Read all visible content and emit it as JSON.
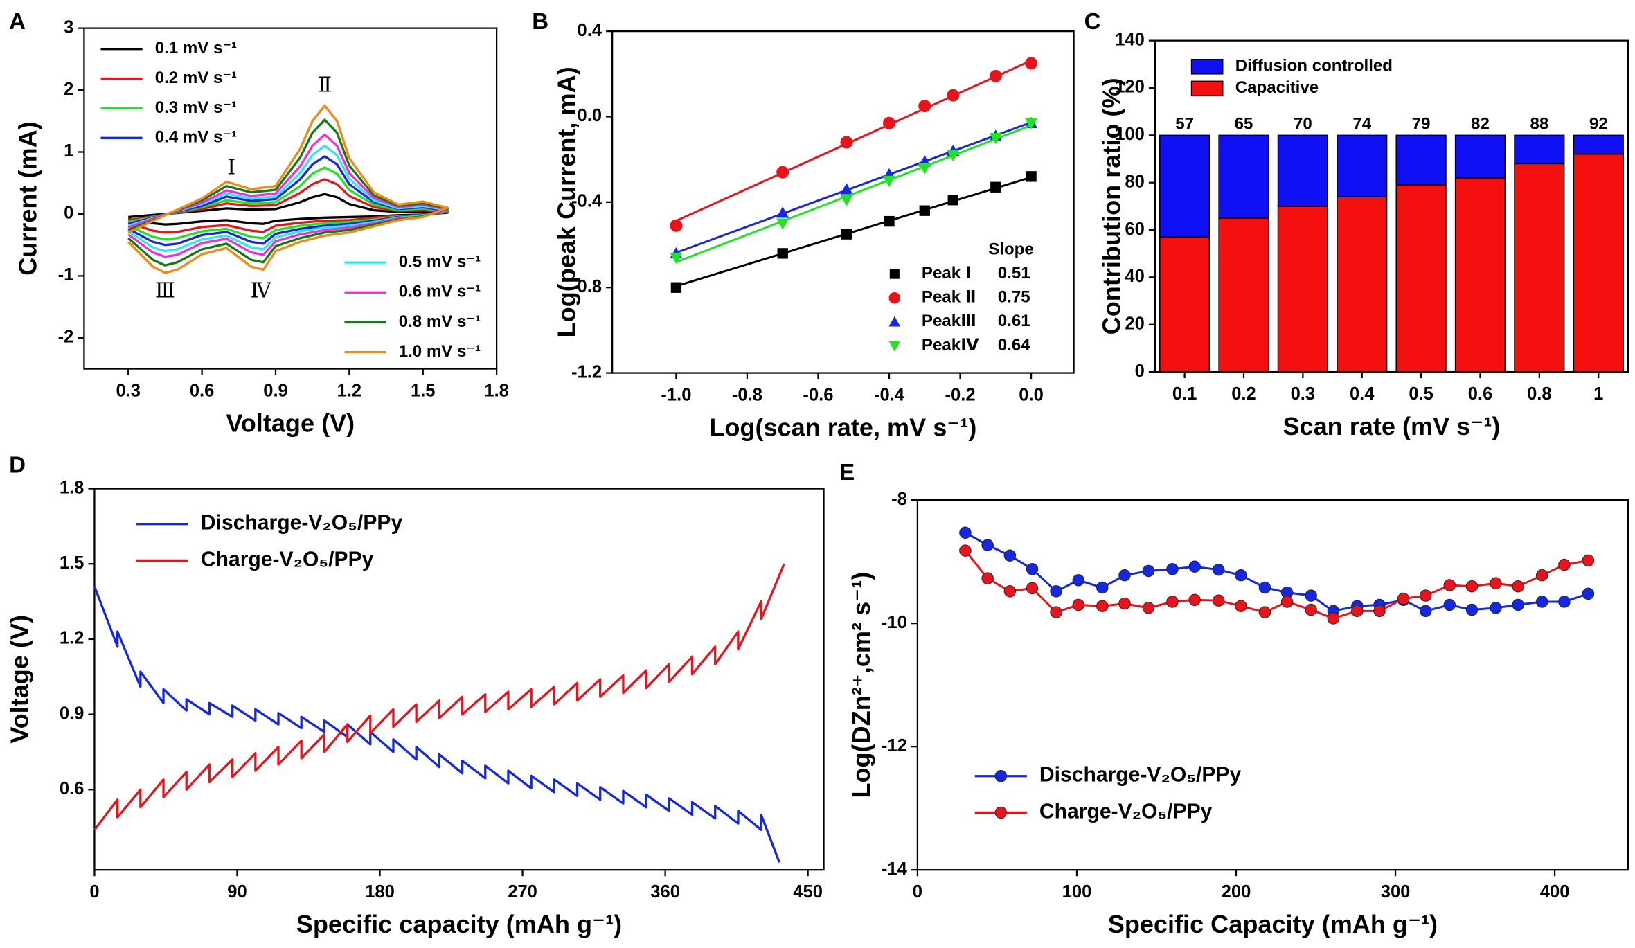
{
  "chart_data": [
    {
      "type": "line",
      "panel_label": "A",
      "xlabel": "Voltage (V)",
      "ylabel": "Current (mA)",
      "xlim": [
        0.12,
        1.8
      ],
      "xticks": [
        0.3,
        0.6,
        0.9,
        1.2,
        1.5,
        1.8
      ],
      "ylim": [
        -2.5,
        3
      ],
      "yticks": [
        -2,
        -1,
        0,
        1,
        2,
        3
      ],
      "x": [
        0.3,
        0.45,
        0.6,
        0.7,
        0.8,
        0.9,
        1.0,
        1.05,
        1.1,
        1.15,
        1.2,
        1.3,
        1.4,
        1.5,
        1.6,
        1.5,
        1.4,
        1.3,
        1.2,
        1.1,
        1.0,
        0.9,
        0.85,
        0.8,
        0.7,
        0.6,
        0.5,
        0.45,
        0.4,
        0.3
      ],
      "series": [
        {
          "name": "0.1 mV s⁻¹",
          "color": "#000000",
          "values": [
            -0.05,
            0,
            0.05,
            0.09,
            0.07,
            0.08,
            0.19,
            0.27,
            0.32,
            0.27,
            0.16,
            0.06,
            0.03,
            0.04,
            0.02,
            -0.01,
            -0.02,
            -0.04,
            -0.05,
            -0.06,
            -0.08,
            -0.11,
            -0.16,
            -0.15,
            -0.1,
            -0.12,
            -0.16,
            -0.17,
            -0.15,
            -0.08
          ]
        },
        {
          "name": "0.2 mV s⁻¹",
          "color": "#e8141c",
          "values": [
            -0.1,
            -0.01,
            0.08,
            0.17,
            0.13,
            0.14,
            0.34,
            0.48,
            0.56,
            0.48,
            0.29,
            0.11,
            0.05,
            0.06,
            0.03,
            -0.02,
            -0.03,
            -0.06,
            -0.1,
            -0.11,
            -0.14,
            -0.19,
            -0.29,
            -0.27,
            -0.18,
            -0.21,
            -0.29,
            -0.3,
            -0.27,
            -0.14
          ]
        },
        {
          "name": "0.3 mV s⁻¹",
          "color": "#1ee61e",
          "values": [
            -0.13,
            -0.01,
            0.11,
            0.22,
            0.17,
            0.19,
            0.45,
            0.65,
            0.75,
            0.65,
            0.39,
            0.15,
            0.06,
            0.09,
            0.04,
            -0.02,
            -0.04,
            -0.09,
            -0.13,
            -0.15,
            -0.19,
            -0.26,
            -0.39,
            -0.37,
            -0.24,
            -0.28,
            -0.39,
            -0.41,
            -0.37,
            -0.19
          ]
        },
        {
          "name": "0.4 mV s⁻¹",
          "color": "#1428e0",
          "values": [
            -0.16,
            -0.01,
            0.13,
            0.28,
            0.21,
            0.24,
            0.56,
            0.8,
            0.93,
            0.8,
            0.48,
            0.19,
            0.08,
            0.11,
            0.05,
            -0.03,
            -0.05,
            -0.11,
            -0.16,
            -0.19,
            -0.24,
            -0.32,
            -0.48,
            -0.45,
            -0.29,
            -0.34,
            -0.48,
            -0.5,
            -0.45,
            -0.24
          ]
        },
        {
          "name": "0.5 mV s⁻¹",
          "color": "#2ee8f0",
          "values": [
            -0.19,
            -0.01,
            0.16,
            0.33,
            0.25,
            0.28,
            0.66,
            0.95,
            1.1,
            0.95,
            0.57,
            0.22,
            0.09,
            0.13,
            0.06,
            -0.03,
            -0.06,
            -0.13,
            -0.19,
            -0.22,
            -0.28,
            -0.38,
            -0.57,
            -0.54,
            -0.35,
            -0.41,
            -0.57,
            -0.6,
            -0.54,
            -0.28
          ]
        },
        {
          "name": "0.6 mV s⁻¹",
          "color": "#f02ee0",
          "values": [
            -0.22,
            -0.01,
            0.18,
            0.38,
            0.29,
            0.33,
            0.77,
            1.1,
            1.28,
            1.1,
            0.66,
            0.26,
            0.11,
            0.15,
            0.07,
            -0.04,
            -0.07,
            -0.15,
            -0.22,
            -0.26,
            -0.33,
            -0.44,
            -0.66,
            -0.62,
            -0.4,
            -0.47,
            -0.66,
            -0.69,
            -0.62,
            -0.33
          ]
        },
        {
          "name": "0.8 mV s⁻¹",
          "color": "#137a13",
          "values": [
            -0.26,
            -0.02,
            0.22,
            0.45,
            0.35,
            0.39,
            0.91,
            1.31,
            1.52,
            1.31,
            0.78,
            0.3,
            0.13,
            0.17,
            0.09,
            -0.04,
            -0.09,
            -0.17,
            -0.26,
            -0.3,
            -0.39,
            -0.52,
            -0.78,
            -0.74,
            -0.48,
            -0.57,
            -0.78,
            -0.83,
            -0.74,
            -0.39
          ]
        },
        {
          "name": "1.0 mV s⁻¹",
          "color": "#f08a14",
          "values": [
            -0.3,
            -0.02,
            0.25,
            0.52,
            0.4,
            0.45,
            1.05,
            1.5,
            1.75,
            1.5,
            0.9,
            0.35,
            0.15,
            0.2,
            0.1,
            -0.05,
            -0.1,
            -0.2,
            -0.3,
            -0.35,
            -0.45,
            -0.6,
            -0.9,
            -0.85,
            -0.55,
            -0.65,
            -0.9,
            -0.95,
            -0.85,
            -0.45
          ]
        }
      ],
      "annotations": [
        {
          "text": "Ⅰ",
          "x": 0.72,
          "y": 0.72,
          "color": "#000000"
        },
        {
          "text": "Ⅱ",
          "x": 1.1,
          "y": 2.05,
          "color": "#e8141c"
        },
        {
          "text": "Ⅲ",
          "x": 0.45,
          "y": -1.27,
          "color": "#1428e0"
        },
        {
          "text": "Ⅳ",
          "x": 0.84,
          "y": -1.27,
          "color": "#f02ee0"
        }
      ]
    },
    {
      "type": "scatter",
      "panel_label": "B",
      "xlabel": "Log(scan rate, mV s⁻¹)",
      "ylabel": "Log(peak Current, mA)",
      "xlim": [
        -1.18,
        0.12
      ],
      "xticks": [
        {
          "value": -1,
          "label": "-1.0"
        },
        -0.8,
        -0.6,
        -0.4,
        -0.2,
        {
          "value": 0,
          "label": "0.0"
        }
      ],
      "ylim": [
        -1.2,
        0.4
      ],
      "yticks": [
        -1.2,
        -0.8,
        -0.4,
        {
          "value": 0,
          "label": "0.0"
        },
        0.4
      ],
      "legend_title": "Slope",
      "x": [
        -1,
        -0.7,
        -0.52,
        -0.4,
        -0.3,
        -0.22,
        -0.1,
        0
      ],
      "series": [
        {
          "name": "Peak Ⅰ",
          "color": "#000000",
          "marker": "square",
          "slope": 0.51,
          "values": [
            -0.8,
            -0.64,
            -0.55,
            -0.49,
            -0.44,
            -0.39,
            -0.33,
            -0.28
          ]
        },
        {
          "name": "Peak Ⅱ",
          "color": "#e8141c",
          "marker": "circle",
          "slope": 0.75,
          "values": [
            -0.51,
            -0.26,
            -0.12,
            -0.03,
            0.05,
            0.1,
            0.19,
            0.25
          ]
        },
        {
          "name": "PeakⅢ",
          "color": "#1428e0",
          "marker": "triangle-up",
          "slope": 0.61,
          "values": [
            -0.64,
            -0.45,
            -0.34,
            -0.27,
            -0.21,
            -0.16,
            -0.09,
            -0.03
          ]
        },
        {
          "name": "PeakⅣ",
          "color": "#1ee61e",
          "marker": "triangle-down",
          "slope": 0.64,
          "values": [
            -0.66,
            -0.5,
            -0.39,
            -0.3,
            -0.24,
            -0.18,
            -0.1,
            -0.03
          ]
        }
      ]
    },
    {
      "type": "bar",
      "panel_label": "C",
      "xlabel": "Scan rate (mV s⁻¹)",
      "ylabel": "Contribution ratio (%)",
      "stacked": true,
      "categories": [
        "0.1",
        "0.2",
        "0.3",
        "0.4",
        "0.5",
        "0.6",
        "0.8",
        "1"
      ],
      "ylim": [
        0,
        140
      ],
      "yticks": [
        0,
        20,
        40,
        60,
        80,
        100,
        120,
        140
      ],
      "series": [
        {
          "name": "Diffusion controlled",
          "color": "#1010f5",
          "values": [
            43,
            35,
            30,
            26,
            21,
            18,
            12,
            8
          ]
        },
        {
          "name": "Capacitive",
          "color": "#f51010",
          "show_labels": true,
          "values": [
            57,
            65,
            70,
            74,
            79,
            82,
            88,
            92
          ]
        }
      ]
    },
    {
      "type": "line",
      "panel_label": "D",
      "xlabel": "Specific capacity (mAh g⁻¹)",
      "ylabel": "Voltage (V)",
      "xlim": [
        0,
        460
      ],
      "xticks": [
        0,
        90,
        180,
        270,
        360,
        450
      ],
      "ylim": [
        0.28,
        1.8
      ],
      "yticks": [
        0.6,
        0.9,
        1.2,
        1.5,
        1.8
      ],
      "series": [
        {
          "name": "Discharge-V₂O₅/PPy",
          "color": "#1428e0",
          "x": [
            0,
            14.5,
            14.5,
            29,
            29,
            43.5,
            43.5,
            58,
            58,
            72.5,
            72.5,
            87,
            87,
            101.5,
            101.5,
            116,
            116,
            130.5,
            130.5,
            145,
            145,
            159.5,
            159.5,
            174,
            174,
            188.5,
            188.5,
            203,
            203,
            217.5,
            217.5,
            232,
            232,
            246.5,
            246.5,
            261,
            261,
            275.5,
            275.5,
            290,
            290,
            304.5,
            304.5,
            319,
            319,
            333.5,
            333.5,
            348,
            348,
            362.5,
            362.5,
            377,
            377,
            391.5,
            391.5,
            406,
            406,
            420.5,
            420.5,
            432
          ],
          "values": [
            1.41,
            1.17,
            1.23,
            1.01,
            1.07,
            0.945,
            1.0,
            0.915,
            0.96,
            0.9,
            0.945,
            0.89,
            0.935,
            0.875,
            0.92,
            0.86,
            0.905,
            0.845,
            0.89,
            0.83,
            0.875,
            0.81,
            0.86,
            0.78,
            0.83,
            0.75,
            0.8,
            0.72,
            0.77,
            0.69,
            0.74,
            0.665,
            0.715,
            0.645,
            0.695,
            0.625,
            0.675,
            0.605,
            0.655,
            0.59,
            0.64,
            0.575,
            0.625,
            0.56,
            0.61,
            0.545,
            0.595,
            0.53,
            0.58,
            0.515,
            0.565,
            0.5,
            0.55,
            0.485,
            0.535,
            0.465,
            0.515,
            0.44,
            0.5,
            0.31
          ]
        },
        {
          "name": "Charge-V₂O₅/PPy",
          "color": "#e8141c",
          "x": [
            0,
            14.5,
            14.5,
            29,
            29,
            43.5,
            43.5,
            58,
            58,
            72.5,
            72.5,
            87,
            87,
            101.5,
            101.5,
            116,
            116,
            130.5,
            130.5,
            145,
            145,
            159.5,
            159.5,
            174,
            174,
            188.5,
            188.5,
            203,
            203,
            217.5,
            217.5,
            232,
            232,
            246.5,
            246.5,
            261,
            261,
            275.5,
            275.5,
            290,
            290,
            304.5,
            304.5,
            319,
            319,
            333.5,
            333.5,
            348,
            348,
            362.5,
            362.5,
            377,
            377,
            391.5,
            391.5,
            406,
            406,
            420.5,
            420.5,
            435
          ],
          "values": [
            0.44,
            0.56,
            0.49,
            0.6,
            0.53,
            0.64,
            0.57,
            0.67,
            0.6,
            0.7,
            0.63,
            0.72,
            0.65,
            0.745,
            0.675,
            0.77,
            0.7,
            0.795,
            0.725,
            0.82,
            0.75,
            0.86,
            0.79,
            0.895,
            0.825,
            0.92,
            0.85,
            0.94,
            0.87,
            0.955,
            0.885,
            0.97,
            0.9,
            0.98,
            0.91,
            0.99,
            0.92,
            1.0,
            0.93,
            1.01,
            0.94,
            1.025,
            0.955,
            1.04,
            0.97,
            1.055,
            0.985,
            1.075,
            1.005,
            1.1,
            1.03,
            1.13,
            1.06,
            1.17,
            1.1,
            1.23,
            1.16,
            1.35,
            1.28,
            1.5
          ]
        }
      ]
    },
    {
      "type": "line",
      "panel_label": "E",
      "markers": true,
      "xlabel": "Specific Capacity (mAh g⁻¹)",
      "ylabel": "Log(DZn²⁺,cm² s⁻¹)",
      "xlim": [
        0,
        446
      ],
      "xticks": [
        0,
        100,
        200,
        300,
        400
      ],
      "ylim": [
        -14,
        -8
      ],
      "yticks": [
        -14,
        -12,
        -10,
        -8
      ],
      "x": [
        30,
        44,
        58,
        72,
        87,
        101,
        116,
        130,
        145,
        160,
        174,
        189,
        203,
        218,
        232,
        247,
        261,
        276,
        290,
        305,
        319,
        334,
        348,
        363,
        377,
        392,
        406,
        421
      ],
      "series": [
        {
          "name": "Discharge-V₂O₅/PPy",
          "color": "#1428e0",
          "values": [
            -8.53,
            -8.73,
            -8.9,
            -9.12,
            -9.48,
            -9.3,
            -9.42,
            -9.22,
            -9.15,
            -9.12,
            -9.08,
            -9.13,
            -9.22,
            -9.42,
            -9.5,
            -9.55,
            -9.8,
            -9.72,
            -9.7,
            -9.62,
            -9.8,
            -9.7,
            -9.78,
            -9.75,
            -9.7,
            -9.65,
            -9.65,
            -9.52
          ]
        },
        {
          "name": "Charge-V₂O₅/PPy",
          "color": "#e8141c",
          "values": [
            -8.82,
            -9.27,
            -9.48,
            -9.43,
            -9.82,
            -9.7,
            -9.72,
            -9.68,
            -9.75,
            -9.65,
            -9.62,
            -9.63,
            -9.72,
            -9.82,
            -9.65,
            -9.78,
            -9.92,
            -9.8,
            -9.8,
            -9.6,
            -9.55,
            -9.38,
            -9.4,
            -9.35,
            -9.4,
            -9.22,
            -9.05,
            -8.98
          ]
        }
      ]
    }
  ]
}
